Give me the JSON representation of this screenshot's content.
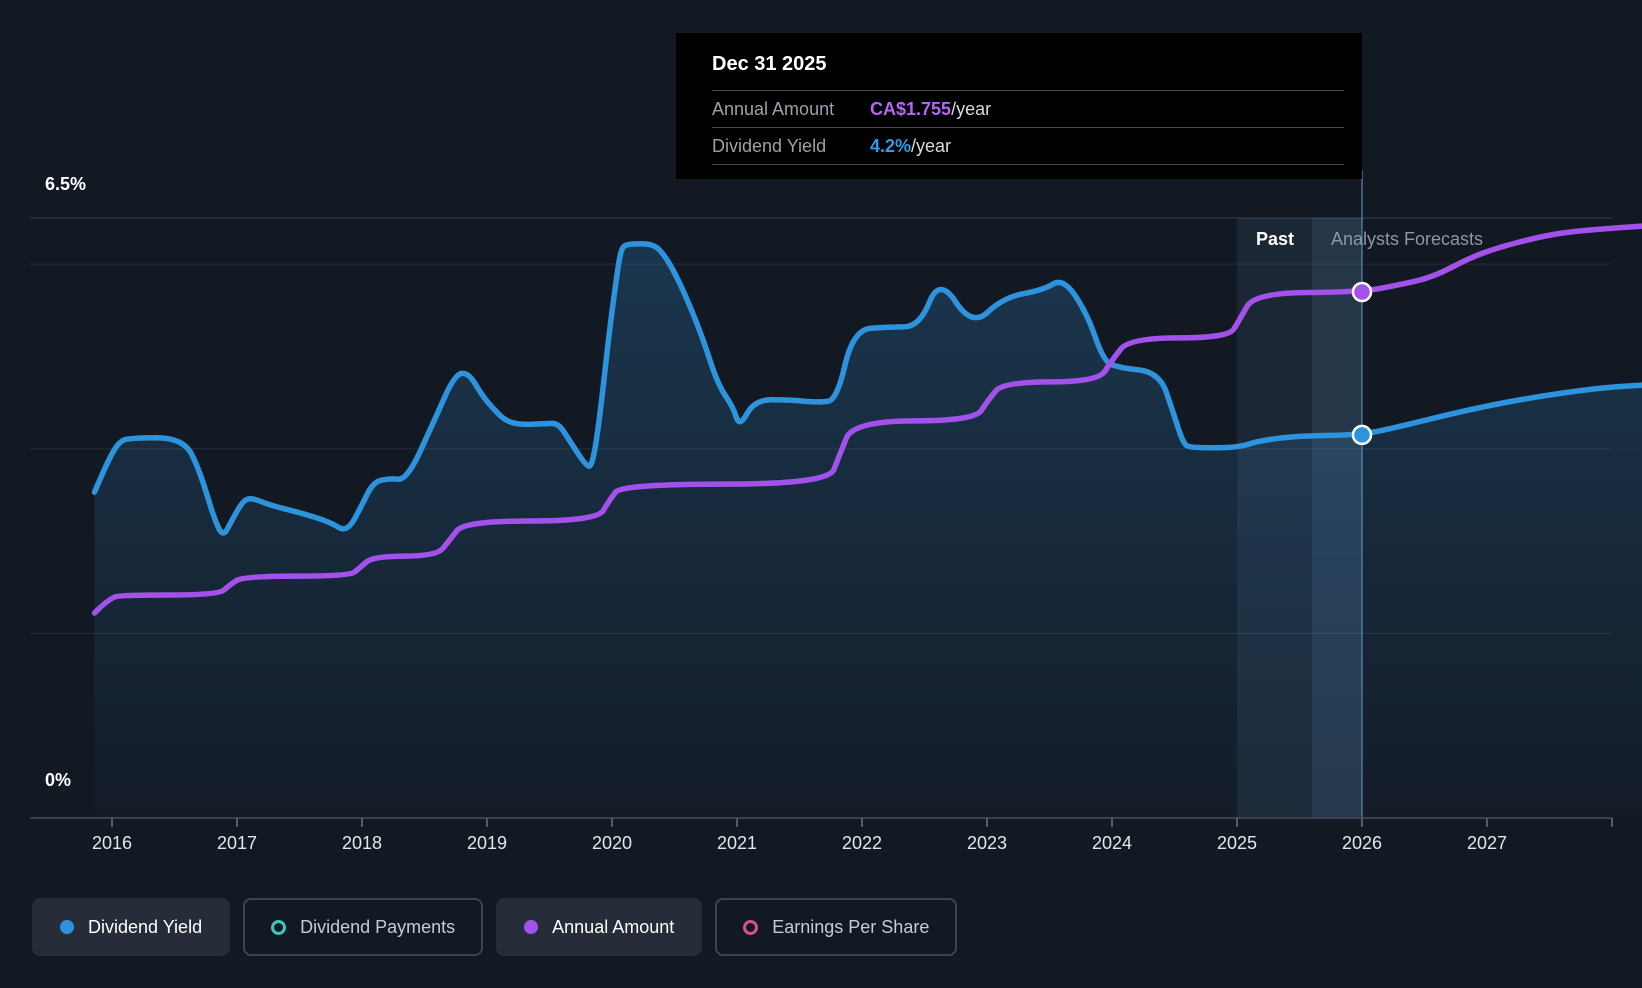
{
  "tooltip": {
    "date": "Dec 31 2025",
    "rows": [
      {
        "label": "Annual Amount",
        "value": "CA$1.755",
        "suffix": "/year",
        "color": "#b067f2"
      },
      {
        "label": "Dividend Yield",
        "value": "4.2%",
        "suffix": "/year",
        "color": "#2e9be4"
      }
    ]
  },
  "annotations": {
    "past": "Past",
    "forecast": "Analysts Forecasts"
  },
  "axis": {
    "y_top_label": "6.5%",
    "y_bottom_label": "0%"
  },
  "legend": [
    {
      "label": "Dividend Yield",
      "color": "#2d93dd",
      "style": "filled",
      "active": true
    },
    {
      "label": "Dividend Payments",
      "color": "#38c9b9",
      "style": "ring",
      "active": false
    },
    {
      "label": "Annual Amount",
      "color": "#a251ea",
      "style": "filled",
      "active": true
    },
    {
      "label": "Earnings Per Share",
      "color": "#d1538f",
      "style": "ring",
      "active": false
    }
  ],
  "chart_data": {
    "type": "line",
    "x_range": [
      2015.86,
      2028.24
    ],
    "x_ticks": [
      2016,
      2017,
      2018,
      2019,
      2020,
      2021,
      2022,
      2023,
      2024,
      2025,
      2026,
      2027
    ],
    "x_edge_tick": 2028,
    "yield_axis": {
      "range": [
        0,
        6.5
      ],
      "top_label": "6.5%",
      "bottom_label": "0%",
      "gridlines": [
        2,
        4,
        6
      ],
      "top_gridline": 6.5
    },
    "amount_axis": {
      "range": [
        0,
        2.002
      ],
      "unit": "CA$"
    },
    "crosshair_x": 2026.0,
    "highlight_bands": [
      {
        "from": 2025.0,
        "to": 2026.0,
        "opacity": 0.1
      },
      {
        "from": 2025.6,
        "to": 2026.0,
        "opacity": 0.12
      }
    ],
    "series": [
      {
        "name": "Dividend Yield",
        "unit": "%",
        "axis": "yield",
        "color": "#2d93dd",
        "area": true,
        "points": [
          [
            2015.86,
            3.53
          ],
          [
            2015.95,
            3.82
          ],
          [
            2016.05,
            4.07
          ],
          [
            2016.14,
            4.12
          ],
          [
            2016.57,
            4.12
          ],
          [
            2016.7,
            3.77
          ],
          [
            2016.82,
            3.23
          ],
          [
            2016.89,
            3.04
          ],
          [
            2016.96,
            3.23
          ],
          [
            2017.05,
            3.44
          ],
          [
            2017.12,
            3.47
          ],
          [
            2017.26,
            3.39
          ],
          [
            2017.5,
            3.31
          ],
          [
            2017.74,
            3.21
          ],
          [
            2017.88,
            3.09
          ],
          [
            2018.0,
            3.39
          ],
          [
            2018.09,
            3.64
          ],
          [
            2018.22,
            3.68
          ],
          [
            2018.36,
            3.66
          ],
          [
            2018.58,
            4.31
          ],
          [
            2018.74,
            4.8
          ],
          [
            2018.85,
            4.83
          ],
          [
            2018.96,
            4.58
          ],
          [
            2019.04,
            4.45
          ],
          [
            2019.14,
            4.31
          ],
          [
            2019.26,
            4.26
          ],
          [
            2019.46,
            4.27
          ],
          [
            2019.57,
            4.28
          ],
          [
            2019.66,
            4.09
          ],
          [
            2019.79,
            3.82
          ],
          [
            2019.84,
            3.8
          ],
          [
            2019.9,
            4.31
          ],
          [
            2019.98,
            5.29
          ],
          [
            2020.05,
            5.99
          ],
          [
            2020.08,
            6.19
          ],
          [
            2020.14,
            6.22
          ],
          [
            2020.33,
            6.22
          ],
          [
            2020.42,
            6.1
          ],
          [
            2020.52,
            5.86
          ],
          [
            2020.62,
            5.56
          ],
          [
            2020.73,
            5.18
          ],
          [
            2020.85,
            4.69
          ],
          [
            2020.97,
            4.45
          ],
          [
            2021.02,
            4.23
          ],
          [
            2021.14,
            4.53
          ],
          [
            2021.42,
            4.53
          ],
          [
            2021.66,
            4.5
          ],
          [
            2021.8,
            4.53
          ],
          [
            2021.93,
            5.29
          ],
          [
            2022.21,
            5.32
          ],
          [
            2022.46,
            5.32
          ],
          [
            2022.62,
            5.86
          ],
          [
            2022.88,
            5.32
          ],
          [
            2023.13,
            5.64
          ],
          [
            2023.45,
            5.72
          ],
          [
            2023.61,
            5.85
          ],
          [
            2023.8,
            5.47
          ],
          [
            2023.93,
            4.96
          ],
          [
            2024.04,
            4.88
          ],
          [
            2024.38,
            4.83
          ],
          [
            2024.49,
            4.39
          ],
          [
            2024.57,
            4.06
          ],
          [
            2024.62,
            4.01
          ],
          [
            2025.0,
            4.01
          ],
          [
            2025.18,
            4.09
          ],
          [
            2025.5,
            4.14
          ],
          [
            2025.99,
            4.15
          ],
          [
            2026.3,
            4.24
          ],
          [
            2026.84,
            4.42
          ],
          [
            2027.37,
            4.56
          ],
          [
            2027.9,
            4.66
          ],
          [
            2028.24,
            4.69
          ]
        ]
      },
      {
        "name": "Annual Amount",
        "unit": "CA$",
        "axis": "amount",
        "color": "#a251ea",
        "area": false,
        "points": [
          [
            2015.86,
            0.684
          ],
          [
            2015.98,
            0.734
          ],
          [
            2016.09,
            0.744
          ],
          [
            2016.85,
            0.744
          ],
          [
            2016.94,
            0.777
          ],
          [
            2017.05,
            0.807
          ],
          [
            2017.9,
            0.807
          ],
          [
            2017.98,
            0.834
          ],
          [
            2018.09,
            0.874
          ],
          [
            2018.6,
            0.874
          ],
          [
            2018.7,
            0.927
          ],
          [
            2018.82,
            0.991
          ],
          [
            2019.88,
            0.991
          ],
          [
            2019.98,
            1.061
          ],
          [
            2020.08,
            1.114
          ],
          [
            2021.73,
            1.114
          ],
          [
            2021.82,
            1.211
          ],
          [
            2021.93,
            1.325
          ],
          [
            2022.9,
            1.325
          ],
          [
            2023.01,
            1.395
          ],
          [
            2023.13,
            1.455
          ],
          [
            2023.89,
            1.455
          ],
          [
            2024.0,
            1.528
          ],
          [
            2024.14,
            1.602
          ],
          [
            2024.93,
            1.602
          ],
          [
            2025.02,
            1.662
          ],
          [
            2025.14,
            1.752
          ],
          [
            2025.99,
            1.755
          ],
          [
            2026.3,
            1.779
          ],
          [
            2026.57,
            1.805
          ],
          [
            2026.86,
            1.869
          ],
          [
            2027.1,
            1.905
          ],
          [
            2027.42,
            1.939
          ],
          [
            2027.64,
            1.955
          ],
          [
            2027.9,
            1.965
          ],
          [
            2028.24,
            1.975
          ]
        ]
      }
    ],
    "markers": [
      {
        "series": "Annual Amount",
        "x": 2026.0,
        "value": 1.755
      },
      {
        "series": "Dividend Yield",
        "x": 2026.0,
        "value": 4.15
      }
    ]
  }
}
